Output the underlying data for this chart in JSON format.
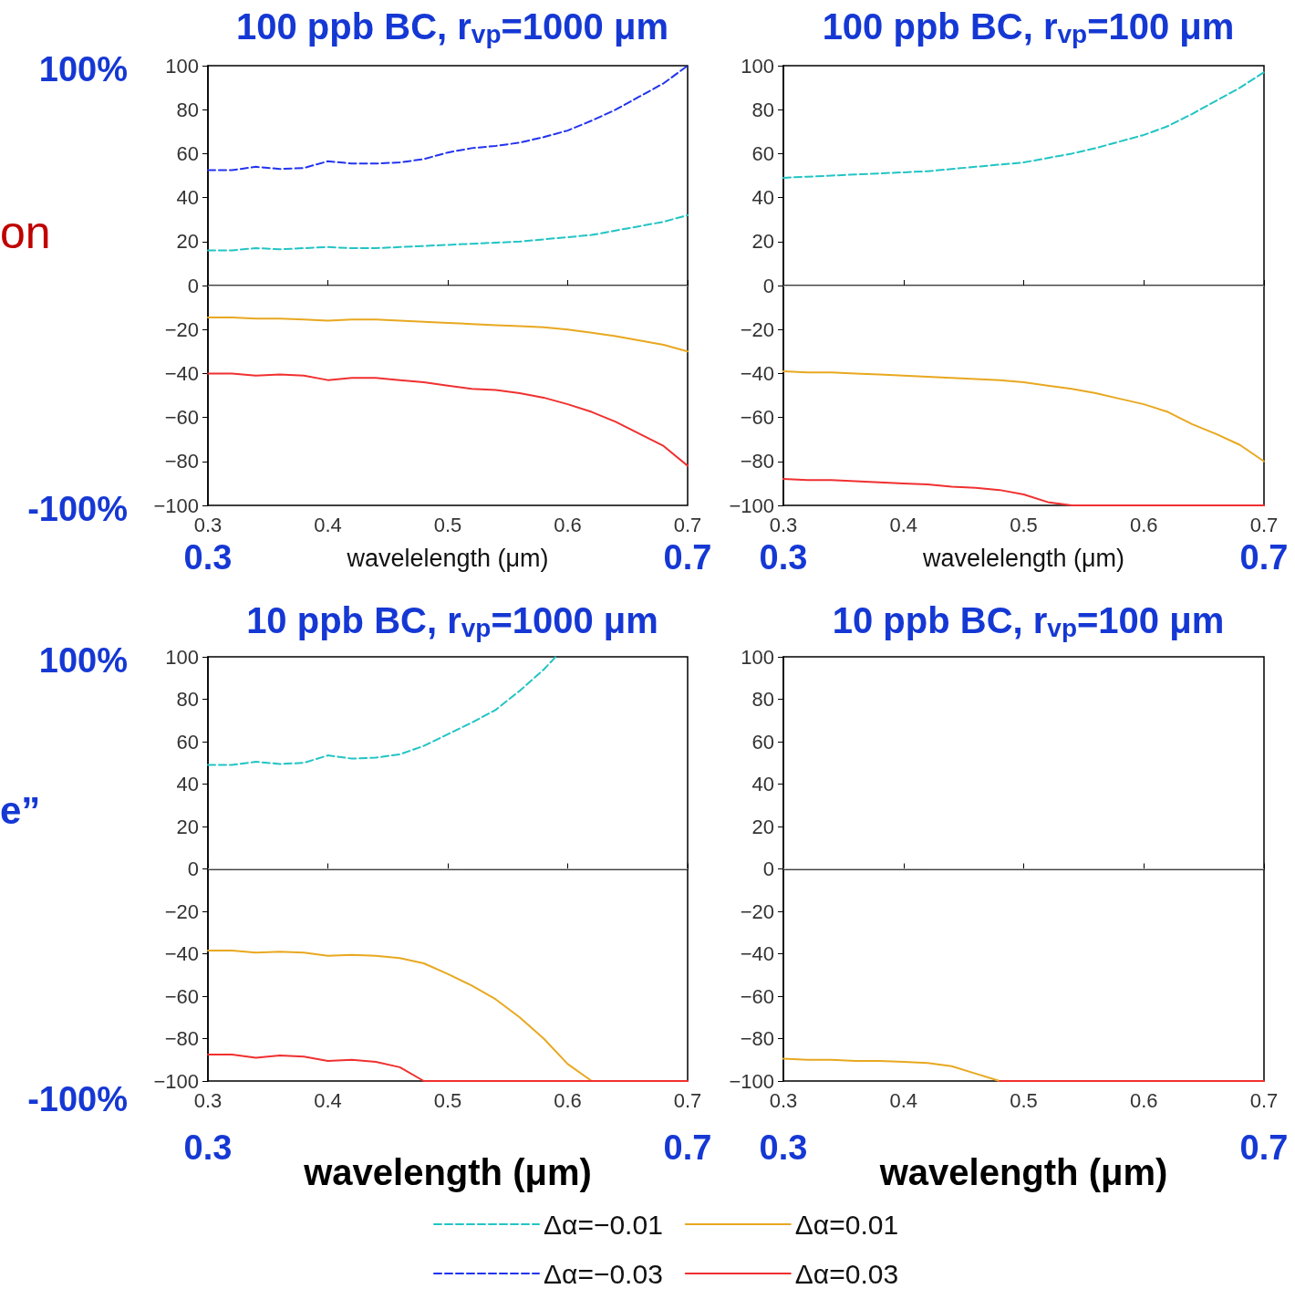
{
  "chart_data": [
    {
      "type": "line",
      "title": "100 ppb BC, r$_{vp}$=1000 μm",
      "xlabel": "wavelelength (μm)",
      "x": [
        0.3,
        0.32,
        0.34,
        0.36,
        0.38,
        0.4,
        0.42,
        0.44,
        0.46,
        0.48,
        0.5,
        0.52,
        0.54,
        0.56,
        0.58,
        0.6,
        0.62,
        0.64,
        0.66,
        0.68,
        0.7
      ],
      "xlim": [
        0.3,
        0.7
      ],
      "xticks": [
        0.3,
        0.4,
        0.5,
        0.6,
        0.7
      ],
      "ylim": [
        -100,
        100
      ],
      "yticks": [
        -100,
        -80,
        -60,
        -40,
        -20,
        0,
        20,
        40,
        60,
        80,
        100
      ],
      "marker": "none",
      "legend": "bottom",
      "ref_lines": [
        {
          "axis": "y",
          "value": 0,
          "color": "#b0b0b0"
        }
      ],
      "annotations": [
        "100%",
        "-100%",
        "0.3",
        "0.7",
        "on"
      ],
      "series": [
        {
          "name": "Δα=−0.01",
          "color": "#22c4c4",
          "line_style": "dashed",
          "values": [
            16,
            16,
            17,
            16.5,
            17,
            17.5,
            17,
            17,
            17.5,
            18,
            18.5,
            19,
            19.5,
            20,
            21,
            22,
            23,
            25,
            27,
            29,
            32
          ]
        },
        {
          "name": "Δα=0.01",
          "color": "#e8a820",
          "line_style": "solid",
          "values": [
            -14.5,
            -14.5,
            -15,
            -15,
            -15.5,
            -16,
            -15.5,
            -15.5,
            -16,
            -16.5,
            -17,
            -17.5,
            -18,
            -18.5,
            -19,
            -20,
            -21.5,
            -23,
            -25,
            -27,
            -30
          ]
        },
        {
          "name": "Δα=−0.03",
          "color": "#2233ee",
          "line_style": "dashed",
          "values": [
            52.5,
            52.5,
            54,
            53,
            53.5,
            56.5,
            55.5,
            55.5,
            56,
            57.5,
            60.5,
            62.5,
            63.5,
            65,
            67.5,
            70.5,
            75,
            80,
            86,
            92,
            100
          ]
        },
        {
          "name": "Δα=0.03",
          "color": "#f03030",
          "line_style": "solid",
          "values": [
            -40,
            -40,
            -41,
            -40.5,
            -41,
            -43,
            -42,
            -42,
            -43,
            -44,
            -45.5,
            -47,
            -47.5,
            -49,
            -51,
            -54,
            -57.5,
            -62,
            -67.5,
            -73,
            -82
          ]
        }
      ]
    },
    {
      "type": "line",
      "title": "100 ppb BC, r$_{vp}$=100 μm",
      "xlabel": "wavelelength (μm)",
      "x": [
        0.3,
        0.32,
        0.34,
        0.36,
        0.38,
        0.4,
        0.42,
        0.44,
        0.46,
        0.48,
        0.5,
        0.52,
        0.54,
        0.56,
        0.58,
        0.6,
        0.62,
        0.64,
        0.66,
        0.68,
        0.7
      ],
      "xlim": [
        0.3,
        0.7
      ],
      "xticks": [
        0.3,
        0.4,
        0.5,
        0.6,
        0.7
      ],
      "ylim": [
        -100,
        100
      ],
      "yticks": [
        -100,
        -80,
        -60,
        -40,
        -20,
        0,
        20,
        40,
        60,
        80,
        100
      ],
      "marker": "none",
      "ref_lines": [
        {
          "axis": "y",
          "value": 0,
          "color": "#b0b0b0"
        }
      ],
      "annotations": [
        "0.3",
        "0.7"
      ],
      "series": [
        {
          "color": "#22c4c4",
          "line_style": "dashed",
          "values": [
            49,
            49.5,
            50,
            50.5,
            51,
            51.5,
            52,
            53,
            54,
            55,
            56,
            58,
            60,
            62.5,
            65.5,
            68.5,
            72.5,
            78,
            84,
            90,
            97
          ]
        },
        {
          "color": "#e8a820",
          "line_style": "solid",
          "values": [
            -39,
            -39.5,
            -39.5,
            -40,
            -40.5,
            -41,
            -41.5,
            -42,
            -42.5,
            -43,
            -44,
            -45.5,
            -47,
            -49,
            -51.5,
            -54,
            -57.5,
            -63,
            -67.5,
            -72.5,
            -80
          ]
        },
        {
          "color": "#f03030",
          "line_style": "solid",
          "values": [
            -88,
            -88.5,
            -88.5,
            -89,
            -89.5,
            -90,
            -90.5,
            -91.5,
            -92,
            -93,
            -95,
            -98.5,
            -100,
            -100,
            -100,
            -100,
            -100,
            -100,
            -100,
            -100,
            -100
          ]
        }
      ]
    },
    {
      "type": "line",
      "title": "10 ppb BC, r$_{vp}$=1000 μm",
      "xlabel": "wavelength (μm)",
      "x": [
        0.3,
        0.32,
        0.34,
        0.36,
        0.38,
        0.4,
        0.42,
        0.44,
        0.46,
        0.48,
        0.5,
        0.52,
        0.54,
        0.56,
        0.58,
        0.6,
        0.62,
        0.64,
        0.66,
        0.68,
        0.7
      ],
      "xlim": [
        0.3,
        0.7
      ],
      "xticks": [
        0.3,
        0.4,
        0.5,
        0.6,
        0.7
      ],
      "ylim": [
        -100,
        100
      ],
      "yticks": [
        -100,
        -80,
        -60,
        -40,
        -20,
        0,
        20,
        40,
        60,
        80,
        100
      ],
      "marker": "none",
      "ref_lines": [
        {
          "axis": "y",
          "value": 0,
          "color": "#b0b0b0"
        }
      ],
      "annotations": [
        "100%",
        "-100%",
        "0.3",
        "0.7",
        "e”"
      ],
      "series": [
        {
          "color": "#22c4c4",
          "line_style": "dashed",
          "x": [
            0.3,
            0.32,
            0.34,
            0.36,
            0.38,
            0.4,
            0.42,
            0.44,
            0.46,
            0.48,
            0.5,
            0.52,
            0.54,
            0.56,
            0.58,
            0.59
          ],
          "values": [
            49,
            49,
            50.5,
            49.5,
            50,
            53.5,
            52,
            52.5,
            54,
            58,
            63.5,
            69,
            75,
            84,
            94,
            100
          ]
        },
        {
          "color": "#e8a820",
          "line_style": "solid",
          "values": [
            -38.5,
            -38.5,
            -39.5,
            -39,
            -39.5,
            -41,
            -40.5,
            -41,
            -42,
            -44.5,
            -49.5,
            -55,
            -61.5,
            -70,
            -80,
            -92,
            -100,
            null,
            null,
            null,
            null
          ]
        },
        {
          "color": "#f03030",
          "line_style": "solid",
          "values": [
            -87.5,
            -87.5,
            -89,
            -88,
            -88.5,
            -90.5,
            -90,
            -91,
            -93.5,
            -100,
            -100,
            -100,
            -100,
            -100,
            -100,
            -100,
            -100,
            -100,
            -100,
            -100,
            -100
          ]
        }
      ]
    },
    {
      "type": "line",
      "title": "10 ppb BC, r$_{vp}$=100 μm",
      "xlabel": "wavelength (μm)",
      "x": [
        0.3,
        0.32,
        0.34,
        0.36,
        0.38,
        0.4,
        0.42,
        0.44,
        0.46,
        0.48,
        0.5,
        0.52,
        0.54,
        0.56,
        0.58,
        0.6,
        0.62,
        0.64,
        0.66,
        0.68,
        0.7
      ],
      "xlim": [
        0.3,
        0.7
      ],
      "xticks": [
        0.3,
        0.4,
        0.5,
        0.6,
        0.7
      ],
      "ylim": [
        -100,
        100
      ],
      "yticks": [
        -100,
        -80,
        -60,
        -40,
        -20,
        0,
        20,
        40,
        60,
        80,
        100
      ],
      "marker": "none",
      "ref_lines": [
        {
          "axis": "y",
          "value": 0,
          "color": "#b0b0b0"
        }
      ],
      "annotations": [
        "0.3",
        "0.7"
      ],
      "series": [
        {
          "color": "#e8a820",
          "line_style": "solid",
          "values": [
            -89.5,
            -90,
            -90,
            -90.5,
            -90.5,
            -91,
            -91.5,
            -93,
            -96.5,
            -100,
            null,
            null,
            null,
            null,
            null,
            null,
            null,
            null,
            null,
            null,
            null
          ]
        },
        {
          "color": "#f03030",
          "line_style": "solid",
          "values": [
            null,
            null,
            null,
            null,
            null,
            null,
            null,
            null,
            null,
            -100,
            -100,
            -100,
            -100,
            -100,
            -100,
            -100,
            -100,
            -100,
            -100,
            -100,
            -100
          ]
        }
      ]
    }
  ]
}
